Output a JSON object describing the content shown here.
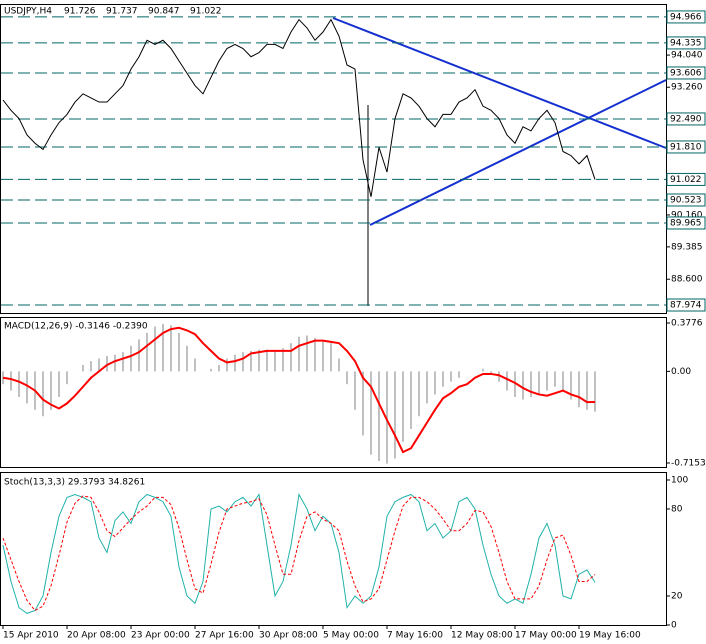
{
  "chart_data": [
    {
      "type": "line",
      "title": "USDJPY,H4",
      "ohlc": [
        91.726,
        91.737,
        90.847,
        91.022
      ],
      "categories": [
        "15 Apr 2010",
        null,
        null,
        null,
        null,
        null,
        null,
        null,
        "20 Apr 08:00",
        null,
        null,
        null,
        null,
        null,
        null,
        null,
        "23 Apr 00:00",
        null,
        null,
        null,
        null,
        null,
        null,
        null,
        "27 Apr 16:00",
        null,
        null,
        null,
        null,
        null,
        null,
        null,
        "30 Apr 08:00",
        null,
        null,
        null,
        null,
        null,
        null,
        null,
        "5 May 00:00",
        null,
        null,
        null,
        null,
        null,
        null,
        null,
        "7 May 16:00",
        null,
        null,
        null,
        null,
        null,
        null,
        null,
        "12 May 08:00",
        null,
        null,
        null,
        null,
        null,
        null,
        null,
        "17 May 00:00",
        null,
        null,
        null,
        null,
        null,
        null,
        null,
        "19 May 16:00",
        null,
        null
      ],
      "series": [
        {
          "color": "#000000",
          "values": [
            92.95,
            92.7,
            92.5,
            92.1,
            91.9,
            91.75,
            92.1,
            92.4,
            92.6,
            92.9,
            93.1,
            93.0,
            92.9,
            92.9,
            93.1,
            93.3,
            93.7,
            94.0,
            94.4,
            94.3,
            94.4,
            94.2,
            93.9,
            93.6,
            93.3,
            93.1,
            93.5,
            93.9,
            94.2,
            94.3,
            94.2,
            94.0,
            94.1,
            94.3,
            94.3,
            94.2,
            94.6,
            94.9,
            94.7,
            94.4,
            94.6,
            94.9,
            94.5,
            93.8,
            93.7,
            91.5,
            90.6,
            91.8,
            91.2,
            92.5,
            93.1,
            93.0,
            92.8,
            92.5,
            92.3,
            92.6,
            92.6,
            92.9,
            93.0,
            93.2,
            92.8,
            92.7,
            92.5,
            92.1,
            91.9,
            92.3,
            92.2,
            92.5,
            92.7,
            92.4,
            91.7,
            91.6,
            91.4,
            91.6,
            91.022
          ]
        }
      ],
      "ylim": [
        87.78,
        95.28
      ],
      "yticks": [
        {
          "value": 94.04,
          "label": "94.040"
        },
        {
          "value": 93.26,
          "label": "93.260"
        },
        {
          "value": 90.16,
          "label": "90.160"
        },
        89.385,
        {
          "value": 88.6,
          "label": "88.600"
        }
      ],
      "levels": [
        94.966,
        94.335,
        93.606,
        {
          "value": 92.49,
          "label": "92.490"
        },
        {
          "value": 91.81,
          "label": "91.810"
        },
        91.022,
        90.523,
        89.965,
        87.974
      ],
      "level_color": "#006666"
    },
    {
      "type": "combo",
      "title": "MACD(12,26,9) -0.3146 -0.2390",
      "series": [
        {
          "type": "bar",
          "color": "#c0c0c0",
          "values": [
            -0.1,
            -0.15,
            -0.2,
            -0.25,
            -0.3,
            -0.35,
            -0.3,
            -0.2,
            -0.1,
            0.0,
            0.05,
            0.08,
            0.1,
            0.12,
            0.13,
            0.15,
            0.2,
            0.25,
            0.3,
            0.35,
            0.37,
            0.36,
            0.3,
            0.2,
            0.1,
            0.0,
            0.02,
            0.05,
            0.1,
            0.13,
            0.15,
            0.16,
            0.17,
            0.17,
            0.16,
            0.18,
            0.22,
            0.27,
            0.28,
            0.26,
            0.24,
            0.22,
            0.1,
            -0.1,
            -0.3,
            -0.5,
            -0.65,
            -0.7,
            -0.72,
            -0.68,
            -0.55,
            -0.45,
            -0.35,
            -0.25,
            -0.18,
            -0.12,
            -0.08,
            -0.05,
            0.0,
            0.0,
            0.02,
            -0.02,
            -0.08,
            -0.15,
            -0.2,
            -0.22,
            -0.2,
            -0.18,
            -0.15,
            -0.12,
            -0.15,
            -0.22,
            -0.28,
            -0.3,
            -0.3146
          ]
        },
        {
          "type": "line",
          "color": "#ff0000",
          "values": [
            -0.05,
            -0.06,
            -0.08,
            -0.11,
            -0.15,
            -0.22,
            -0.26,
            -0.29,
            -0.25,
            -0.19,
            -0.12,
            -0.05,
            0.0,
            0.05,
            0.08,
            0.1,
            0.12,
            0.15,
            0.2,
            0.25,
            0.3,
            0.33,
            0.34,
            0.32,
            0.29,
            0.22,
            0.16,
            0.1,
            0.07,
            0.08,
            0.1,
            0.14,
            0.15,
            0.16,
            0.16,
            0.16,
            0.16,
            0.2,
            0.22,
            0.24,
            0.24,
            0.23,
            0.22,
            0.16,
            0.08,
            -0.05,
            -0.12,
            -0.25,
            -0.38,
            -0.5,
            -0.63,
            -0.6,
            -0.5,
            -0.4,
            -0.3,
            -0.21,
            -0.17,
            -0.12,
            -0.1,
            -0.05,
            -0.02,
            -0.02,
            -0.03,
            -0.06,
            -0.09,
            -0.13,
            -0.16,
            -0.18,
            -0.19,
            -0.17,
            -0.15,
            -0.18,
            -0.2,
            -0.24,
            -0.239
          ]
        }
      ],
      "ylim": [
        -0.7465,
        0.4245
      ],
      "yticks": [
        0.3776,
        {
          "value": 0,
          "label": "0.00"
        },
        -0.7153
      ]
    },
    {
      "type": "line",
      "title": "Stoch(13,3,3) 29.3793 34.8261",
      "series": [
        {
          "color": "#20b2aa",
          "values": [
            55,
            30,
            12,
            8,
            10,
            20,
            50,
            75,
            88,
            90,
            88,
            85,
            60,
            50,
            72,
            78,
            70,
            85,
            90,
            88,
            85,
            75,
            40,
            20,
            15,
            30,
            80,
            82,
            78,
            85,
            88,
            82,
            90,
            55,
            20,
            30,
            55,
            90,
            80,
            65,
            75,
            70,
            50,
            12,
            20,
            15,
            20,
            40,
            75,
            85,
            88,
            90,
            85,
            65,
            70,
            60,
            65,
            85,
            88,
            80,
            55,
            35,
            20,
            15,
            18,
            15,
            35,
            60,
            70,
            55,
            20,
            18,
            35,
            38,
            29.3793
          ]
        },
        {
          "color": "#ff0000",
          "style": "dashed",
          "values": [
            60,
            45,
            30,
            17,
            10,
            13,
            27,
            48,
            71,
            84,
            89,
            88,
            78,
            65,
            61,
            67,
            73,
            78,
            82,
            88,
            88,
            83,
            67,
            45,
            25,
            22,
            42,
            64,
            80,
            82,
            84,
            85,
            87,
            76,
            55,
            35,
            35,
            58,
            75,
            78,
            73,
            70,
            65,
            44,
            27,
            16,
            18,
            25,
            45,
            65,
            82,
            88,
            88,
            85,
            80,
            73,
            65,
            65,
            70,
            79,
            78,
            68,
            50,
            30,
            18,
            18,
            18,
            27,
            45,
            60,
            62,
            48,
            30,
            30,
            34.8261
          ]
        }
      ],
      "ylim": [
        0,
        105.5
      ],
      "yticks": [
        100,
        80,
        20,
        0
      ]
    }
  ]
}
